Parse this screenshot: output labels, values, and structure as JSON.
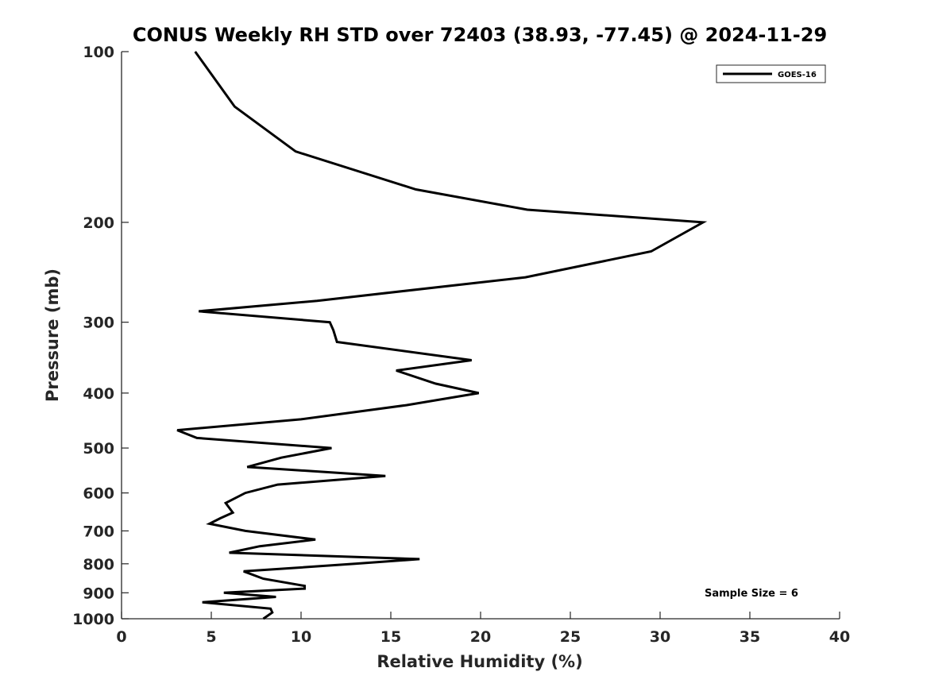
{
  "chart_data": {
    "type": "line",
    "title": "CONUS Weekly RH STD over 72403 (38.93, -77.45) @ 2024-11-29",
    "xlabel": "Relative Humidity (%)",
    "ylabel": "Pressure (mb)",
    "xlim": [
      0,
      40
    ],
    "ylim": [
      100,
      1000
    ],
    "y_scale": "log",
    "y_reversed": true,
    "x_ticks": [
      "0",
      "5",
      "10",
      "15",
      "20",
      "25",
      "30",
      "35",
      "40"
    ],
    "y_ticks": [
      "100",
      "200",
      "300",
      "400",
      "500",
      "600",
      "700",
      "800",
      "900",
      "1000"
    ],
    "grid": false,
    "legend_position": "top-right",
    "annotation": "Sample Size = 6",
    "series": [
      {
        "name": "GOES-16",
        "color": "#000000",
        "x": [
          4.1,
          6.3,
          9.7,
          16.4,
          22.6,
          32.4,
          29.5,
          22.5,
          10.9,
          4.3,
          11.6,
          11.8,
          12.0,
          19.5,
          15.3,
          17.5,
          19.9,
          15.9,
          10.0,
          3.1,
          4.2,
          11.7,
          8.9,
          7.0,
          14.7,
          8.7,
          6.9,
          5.8,
          6.2,
          5.5,
          4.9,
          6.9,
          10.8,
          7.7,
          6.0,
          16.6,
          13.0,
          6.8,
          7.9,
          10.2,
          10.2,
          5.7,
          8.6,
          4.5,
          8.3,
          8.4,
          7.9
        ],
        "y": [
          100,
          125,
          150,
          175,
          190,
          200,
          225,
          250,
          275,
          287,
          300,
          310,
          325,
          350,
          365,
          385,
          400,
          420,
          445,
          465,
          480,
          500,
          520,
          540,
          560,
          580,
          600,
          625,
          650,
          665,
          680,
          700,
          725,
          745,
          765,
          785,
          800,
          825,
          850,
          875,
          885,
          900,
          915,
          935,
          960,
          975,
          1000
        ]
      }
    ]
  }
}
